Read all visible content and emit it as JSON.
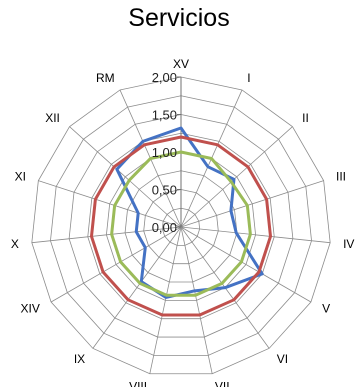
{
  "chart_data": {
    "type": "radar",
    "title": "Servicios",
    "categories": [
      "XV",
      "I",
      "II",
      "III",
      "IV",
      "V",
      "VI",
      "VII",
      "VIII",
      "IX",
      "XIV",
      "X",
      "XI",
      "XII",
      "RM"
    ],
    "rlim": [
      0,
      2
    ],
    "tick_labels": [
      "0,00",
      "0,50",
      "1,00",
      "1,50",
      "2,00"
    ],
    "tick_values": [
      0,
      0.5,
      1,
      1.5,
      2
    ],
    "grid": true,
    "series": [
      {
        "color": "#4472C4",
        "values": [
          1.32,
          0.88,
          0.95,
          0.7,
          0.74,
          1.25,
          1.0,
          0.87,
          0.96,
          0.9,
          0.55,
          0.6,
          0.6,
          1.15,
          1.25
        ]
      },
      {
        "color": "#C0504D",
        "values": [
          1.2,
          1.2,
          1.2,
          1.2,
          1.2,
          1.2,
          1.2,
          1.2,
          1.2,
          1.2,
          1.2,
          1.2,
          1.2,
          1.2,
          1.2
        ]
      },
      {
        "color": "#9BBB59",
        "values": [
          1.0,
          1.0,
          0.9,
          0.93,
          0.93,
          0.93,
          0.93,
          0.93,
          0.93,
          0.93,
          0.93,
          0.93,
          0.93,
          0.93,
          1.0
        ]
      }
    ]
  }
}
